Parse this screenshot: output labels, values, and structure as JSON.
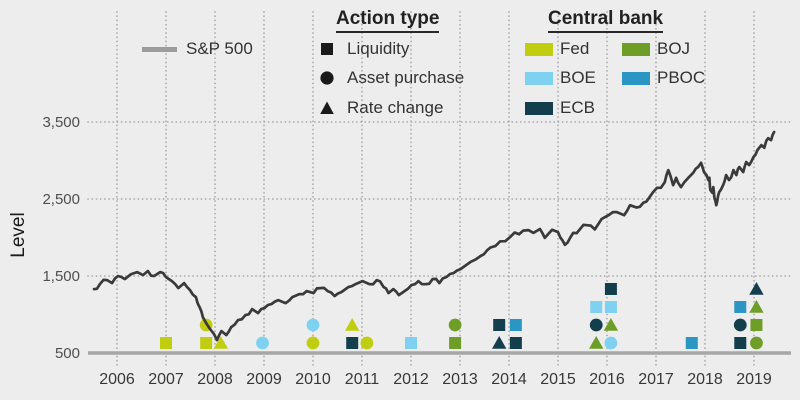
{
  "legends": {
    "sp500": {
      "label": "S&P 500"
    },
    "action": {
      "title": "Action type",
      "items": [
        {
          "shape": "square",
          "label": "Liquidity"
        },
        {
          "shape": "circle",
          "label": "Asset purchase"
        },
        {
          "shape": "triangle",
          "label": "Rate change"
        }
      ]
    },
    "central_bank": {
      "title": "Central bank",
      "items": [
        {
          "bank": "Fed",
          "label": "Fed"
        },
        {
          "bank": "BOE",
          "label": "BOE"
        },
        {
          "bank": "ECB",
          "label": "ECB"
        },
        {
          "bank": "BOJ",
          "label": "BOJ"
        },
        {
          "bank": "PBOC",
          "label": "PBOC"
        }
      ]
    }
  },
  "axes": {
    "y": {
      "title": "Level",
      "ticks": [
        {
          "label": "500",
          "value": 500
        },
        {
          "label": "1,500",
          "value": 1500
        },
        {
          "label": "2,500",
          "value": 2500
        },
        {
          "label": "3,500",
          "value": 3500
        }
      ]
    },
    "x": {
      "ticks": [
        "2006",
        "2007",
        "2008",
        "2009",
        "2010",
        "2011",
        "2012",
        "2013",
        "2014",
        "2015",
        "2016",
        "2017",
        "2018",
        "2019"
      ]
    }
  },
  "colors": {
    "banks": {
      "Fed": "#c1cd10",
      "BOE": "#7fd1f2",
      "ECB": "#133f4d",
      "BOJ": "#6f9e28",
      "PBOC": "#2b96c3"
    },
    "action_icon": "#1a1a1a",
    "sp500_line": "#3a3a3a",
    "sp500_swatch": "#9c9c9c",
    "baseline": "#a6a6a6",
    "gridline": "#aeaeae",
    "background": "#ededed"
  },
  "chart_data": {
    "type": "line+scatter",
    "title": "",
    "ylabel": "Level",
    "ylim": [
      500,
      3500
    ],
    "xlim": [
      2005.5,
      2019.5
    ],
    "grid": "dotted",
    "legend_position": "top",
    "series": [
      {
        "name": "S&P 500",
        "points": [
          [
            2005.53,
            1330
          ],
          [
            2005.65,
            1395
          ],
          [
            2005.8,
            1447
          ],
          [
            2005.9,
            1408
          ],
          [
            2006.02,
            1500
          ],
          [
            2006.16,
            1460
          ],
          [
            2006.29,
            1525
          ],
          [
            2006.41,
            1550
          ],
          [
            2006.53,
            1512
          ],
          [
            2006.63,
            1565
          ],
          [
            2006.76,
            1500
          ],
          [
            2006.88,
            1550
          ],
          [
            2007.0,
            1486
          ],
          [
            2007.12,
            1434
          ],
          [
            2007.25,
            1343
          ],
          [
            2007.37,
            1408
          ],
          [
            2007.49,
            1317
          ],
          [
            2007.61,
            1226
          ],
          [
            2007.72,
            1044
          ],
          [
            2007.82,
            888
          ],
          [
            2007.9,
            810
          ],
          [
            2007.98,
            745
          ],
          [
            2008.04,
            667
          ],
          [
            2008.13,
            784
          ],
          [
            2008.23,
            732
          ],
          [
            2008.33,
            836
          ],
          [
            2008.47,
            927
          ],
          [
            2008.62,
            992
          ],
          [
            2008.76,
            1070
          ],
          [
            2008.88,
            1018
          ],
          [
            2009.01,
            1083
          ],
          [
            2009.15,
            1135
          ],
          [
            2009.29,
            1187
          ],
          [
            2009.44,
            1148
          ],
          [
            2009.58,
            1226
          ],
          [
            2009.72,
            1265
          ],
          [
            2009.87,
            1304
          ],
          [
            2010.01,
            1278
          ],
          [
            2010.15,
            1343
          ],
          [
            2010.3,
            1304
          ],
          [
            2010.44,
            1239
          ],
          [
            2010.58,
            1291
          ],
          [
            2010.72,
            1356
          ],
          [
            2010.87,
            1395
          ],
          [
            2011.01,
            1434
          ],
          [
            2011.15,
            1395
          ],
          [
            2011.3,
            1447
          ],
          [
            2011.44,
            1356
          ],
          [
            2011.54,
            1278
          ],
          [
            2011.64,
            1330
          ],
          [
            2011.75,
            1252
          ],
          [
            2011.87,
            1304
          ],
          [
            2012.01,
            1382
          ],
          [
            2012.15,
            1434
          ],
          [
            2012.3,
            1395
          ],
          [
            2012.44,
            1460
          ],
          [
            2012.58,
            1408
          ],
          [
            2012.72,
            1486
          ],
          [
            2012.87,
            1538
          ],
          [
            2013.01,
            1590
          ],
          [
            2013.21,
            1681
          ],
          [
            2013.42,
            1760
          ],
          [
            2013.62,
            1870
          ],
          [
            2013.82,
            1950
          ],
          [
            2014.03,
            2010
          ],
          [
            2014.29,
            2090
          ],
          [
            2014.5,
            2060
          ],
          [
            2014.63,
            2110
          ],
          [
            2014.73,
            1995
          ],
          [
            2014.88,
            2100
          ],
          [
            2015.0,
            2070
          ],
          [
            2015.14,
            1905
          ],
          [
            2015.31,
            2060
          ],
          [
            2015.45,
            2110
          ],
          [
            2015.59,
            2160
          ],
          [
            2015.75,
            2105
          ],
          [
            2015.96,
            2265
          ],
          [
            2016.2,
            2330
          ],
          [
            2016.35,
            2290
          ],
          [
            2016.47,
            2420
          ],
          [
            2016.6,
            2390
          ],
          [
            2016.74,
            2450
          ],
          [
            2016.94,
            2590
          ],
          [
            2017.1,
            2645
          ],
          [
            2017.18,
            2720
          ],
          [
            2017.25,
            2875
          ],
          [
            2017.29,
            2810
          ],
          [
            2017.35,
            2680
          ],
          [
            2017.41,
            2775
          ],
          [
            2017.45,
            2710
          ],
          [
            2017.51,
            2655
          ],
          [
            2017.58,
            2720
          ],
          [
            2017.66,
            2775
          ],
          [
            2017.76,
            2840
          ],
          [
            2017.86,
            2915
          ],
          [
            2017.92,
            2970
          ],
          [
            2017.98,
            2850
          ],
          [
            2018.03,
            2810
          ],
          [
            2018.07,
            2745
          ],
          [
            2018.09,
            2775
          ],
          [
            2018.11,
            2615
          ],
          [
            2018.15,
            2580
          ],
          [
            2018.17,
            2655
          ],
          [
            2018.19,
            2525
          ],
          [
            2018.23,
            2420
          ],
          [
            2018.29,
            2590
          ],
          [
            2018.37,
            2680
          ],
          [
            2018.43,
            2810
          ],
          [
            2018.49,
            2745
          ],
          [
            2018.58,
            2875
          ],
          [
            2018.64,
            2810
          ],
          [
            2018.7,
            2915
          ],
          [
            2018.78,
            2850
          ],
          [
            2018.84,
            2980
          ],
          [
            2018.9,
            2940
          ],
          [
            2018.99,
            3045
          ],
          [
            2019.07,
            3135
          ],
          [
            2019.15,
            3200
          ],
          [
            2019.21,
            3165
          ],
          [
            2019.29,
            3290
          ],
          [
            2019.35,
            3265
          ],
          [
            2019.41,
            3370
          ]
        ]
      }
    ],
    "action_type_shapes": {
      "liquidity": "square",
      "asset_purchase": "circle",
      "rate_change": "triangle"
    },
    "policy_actions": [
      {
        "bank": "Fed",
        "action": "liquidity",
        "year": 2007.0,
        "row": 0
      },
      {
        "bank": "Fed",
        "action": "asset_purchase",
        "year": 2007.82,
        "row": 1
      },
      {
        "bank": "Fed",
        "action": "liquidity",
        "year": 2007.82,
        "row": 0
      },
      {
        "bank": "Fed",
        "action": "rate_change",
        "year": 2008.12,
        "row": 0
      },
      {
        "bank": "BOE",
        "action": "asset_purchase",
        "year": 2008.97,
        "row": 0
      },
      {
        "bank": "BOE",
        "action": "asset_purchase",
        "year": 2010.0,
        "row": 1
      },
      {
        "bank": "Fed",
        "action": "asset_purchase",
        "year": 2010.0,
        "row": 0
      },
      {
        "bank": "Fed",
        "action": "rate_change",
        "year": 2010.8,
        "row": 1
      },
      {
        "bank": "ECB",
        "action": "liquidity",
        "year": 2010.8,
        "row": 0
      },
      {
        "bank": "Fed",
        "action": "asset_purchase",
        "year": 2011.1,
        "row": 0
      },
      {
        "bank": "BOE",
        "action": "liquidity",
        "year": 2012.0,
        "row": 0
      },
      {
        "bank": "BOJ",
        "action": "asset_purchase",
        "year": 2012.9,
        "row": 1
      },
      {
        "bank": "BOJ",
        "action": "liquidity",
        "year": 2012.9,
        "row": 0
      },
      {
        "bank": "ECB",
        "action": "liquidity",
        "year": 2013.8,
        "row": 1
      },
      {
        "bank": "ECB",
        "action": "rate_change",
        "year": 2013.8,
        "row": 0
      },
      {
        "bank": "PBOC",
        "action": "liquidity",
        "year": 2014.14,
        "row": 1
      },
      {
        "bank": "ECB",
        "action": "liquidity",
        "year": 2014.14,
        "row": 0
      },
      {
        "bank": "BOE",
        "action": "liquidity",
        "year": 2015.78,
        "row": 2
      },
      {
        "bank": "ECB",
        "action": "asset_purchase",
        "year": 2015.78,
        "row": 1
      },
      {
        "bank": "BOJ",
        "action": "rate_change",
        "year": 2015.78,
        "row": 0
      },
      {
        "bank": "ECB",
        "action": "liquidity",
        "year": 2016.08,
        "row": 3
      },
      {
        "bank": "BOE",
        "action": "liquidity",
        "year": 2016.08,
        "row": 2
      },
      {
        "bank": "BOJ",
        "action": "rate_change",
        "year": 2016.08,
        "row": 1
      },
      {
        "bank": "BOE",
        "action": "asset_purchase",
        "year": 2016.08,
        "row": 0
      },
      {
        "bank": "PBOC",
        "action": "liquidity",
        "year": 2017.73,
        "row": 0
      },
      {
        "bank": "PBOC",
        "action": "liquidity",
        "year": 2018.72,
        "row": 2
      },
      {
        "bank": "ECB",
        "action": "asset_purchase",
        "year": 2018.72,
        "row": 1
      },
      {
        "bank": "ECB",
        "action": "liquidity",
        "year": 2018.72,
        "row": 0
      },
      {
        "bank": "ECB",
        "action": "rate_change",
        "year": 2019.05,
        "row": 3
      },
      {
        "bank": "BOJ",
        "action": "rate_change",
        "year": 2019.05,
        "row": 2
      },
      {
        "bank": "BOJ",
        "action": "liquidity",
        "year": 2019.05,
        "row": 1
      },
      {
        "bank": "BOJ",
        "action": "asset_purchase",
        "year": 2019.05,
        "row": 0
      }
    ]
  }
}
